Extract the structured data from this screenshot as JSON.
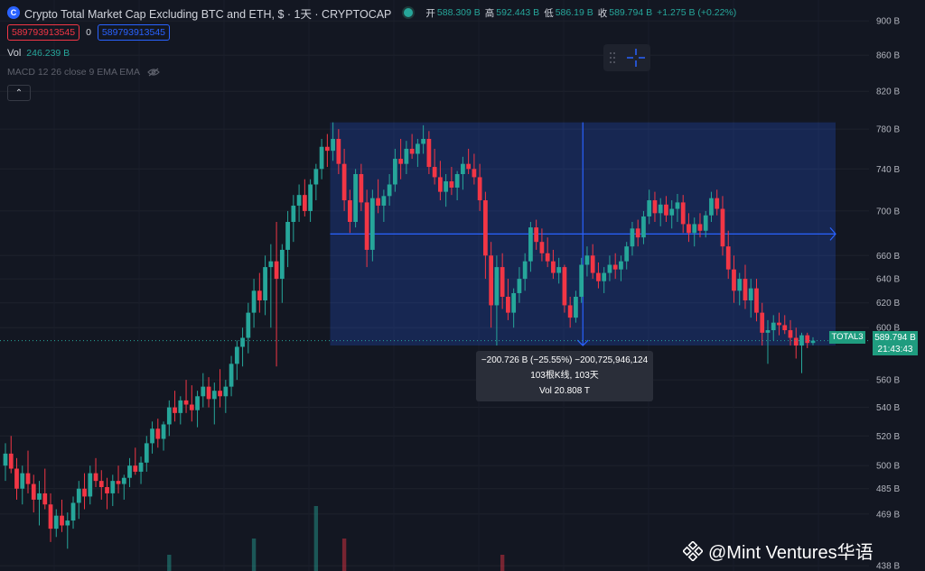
{
  "header": {
    "logo_glyph": "C",
    "title": "Crypto Total Market Cap Excluding BTC and ETH, $ · 1天 · CRYPTOCAP",
    "ohlc": [
      {
        "label": "开",
        "value": "588.309 B"
      },
      {
        "label": "高",
        "value": "592.443 B"
      },
      {
        "label": "低",
        "value": "586.19 B"
      },
      {
        "label": "收",
        "value": "589.794 B"
      },
      {
        "label": "",
        "value": "+1.275 B (+0.22%)"
      }
    ]
  },
  "order_boxes": {
    "sell": "589793913545",
    "spread": "0",
    "buy": "589793913545"
  },
  "volume_legend": {
    "label": "Vol",
    "value": "246.239 B"
  },
  "macd_legend": {
    "text": "MACD 12 26 close 9 EMA EMA"
  },
  "collapse_glyph": "⌃",
  "measure_tooltip": {
    "line1": "−200.726 B (−25.55%) −200,725,946,124",
    "line2": "103根K线, 103天",
    "line3": "Vol 20.808 T"
  },
  "last_price": {
    "symbol": "TOTAL3",
    "value": "589.794 B",
    "countdown": "21:43:43"
  },
  "watermark": "@Mint Ventures华语",
  "colors": {
    "up": "#26a69a",
    "down": "#f23645",
    "accent": "#2962ff",
    "bg": "#131722"
  },
  "chart_data": {
    "type": "candlestick",
    "y_axis_ticks": [
      "900 B",
      "860 B",
      "820 B",
      "780 B",
      "740 B",
      "700 B",
      "660 B",
      "640 B",
      "620 B",
      "600 B",
      "560 B",
      "540 B",
      "520 B",
      "500 B",
      "485 B",
      "469 B",
      "438 B"
    ],
    "y_tick_values": [
      900,
      860,
      820,
      780,
      740,
      700,
      660,
      640,
      620,
      600,
      560,
      540,
      520,
      500,
      485,
      469,
      438
    ],
    "y_log": true,
    "ylim": [
      435,
      912
    ],
    "measure": {
      "start_index": 58,
      "end_index": 161,
      "top": 787,
      "bottom": 586
    },
    "candles": [
      [
        500,
        515,
        490,
        508
      ],
      [
        508,
        520,
        495,
        498
      ],
      [
        498,
        505,
        478,
        485
      ],
      [
        485,
        500,
        475,
        495
      ],
      [
        495,
        510,
        482,
        488
      ],
      [
        488,
        494,
        470,
        478
      ],
      [
        478,
        490,
        462,
        482
      ],
      [
        482,
        498,
        472,
        475
      ],
      [
        475,
        482,
        452,
        460
      ],
      [
        460,
        472,
        455,
        468
      ],
      [
        468,
        478,
        458,
        462
      ],
      [
        462,
        470,
        448,
        465
      ],
      [
        465,
        480,
        460,
        476
      ],
      [
        476,
        490,
        466,
        485
      ],
      [
        485,
        495,
        472,
        480
      ],
      [
        480,
        500,
        475,
        495
      ],
      [
        495,
        505,
        486,
        490
      ],
      [
        490,
        497,
        478,
        486
      ],
      [
        486,
        492,
        472,
        482
      ],
      [
        482,
        494,
        474,
        490
      ],
      [
        490,
        500,
        482,
        488
      ],
      [
        488,
        494,
        478,
        492
      ],
      [
        492,
        505,
        486,
        500
      ],
      [
        500,
        512,
        494,
        496
      ],
      [
        496,
        506,
        488,
        502
      ],
      [
        502,
        520,
        496,
        515
      ],
      [
        515,
        530,
        508,
        525
      ],
      [
        525,
        532,
        512,
        518
      ],
      [
        518,
        530,
        510,
        528
      ],
      [
        528,
        545,
        520,
        540
      ],
      [
        540,
        552,
        530,
        536
      ],
      [
        536,
        548,
        528,
        545
      ],
      [
        545,
        560,
        536,
        542
      ],
      [
        542,
        556,
        530,
        538
      ],
      [
        538,
        552,
        526,
        548
      ],
      [
        548,
        565,
        540,
        555
      ],
      [
        555,
        562,
        540,
        546
      ],
      [
        546,
        558,
        528,
        552
      ],
      [
        552,
        568,
        540,
        548
      ],
      [
        548,
        560,
        536,
        555
      ],
      [
        555,
        578,
        548,
        572
      ],
      [
        572,
        590,
        560,
        585
      ],
      [
        585,
        600,
        570,
        592
      ],
      [
        592,
        620,
        580,
        612
      ],
      [
        612,
        640,
        600,
        630
      ],
      [
        630,
        645,
        612,
        622
      ],
      [
        622,
        660,
        610,
        650
      ],
      [
        650,
        670,
        600,
        655
      ],
      [
        655,
        690,
        570,
        640
      ],
      [
        640,
        670,
        620,
        665
      ],
      [
        665,
        700,
        650,
        690
      ],
      [
        690,
        715,
        672,
        705
      ],
      [
        705,
        725,
        690,
        715
      ],
      [
        715,
        730,
        695,
        700
      ],
      [
        700,
        730,
        690,
        725
      ],
      [
        725,
        745,
        710,
        740
      ],
      [
        740,
        770,
        730,
        762
      ],
      [
        762,
        775,
        742,
        758
      ],
      [
        758,
        787,
        748,
        770
      ],
      [
        770,
        780,
        735,
        745
      ],
      [
        745,
        760,
        700,
        710
      ],
      [
        710,
        720,
        680,
        690
      ],
      [
        690,
        740,
        685,
        735
      ],
      [
        735,
        745,
        700,
        708
      ],
      [
        708,
        720,
        650,
        665
      ],
      [
        665,
        720,
        655,
        712
      ],
      [
        712,
        730,
        698,
        705
      ],
      [
        705,
        720,
        690,
        714
      ],
      [
        714,
        735,
        705,
        725
      ],
      [
        725,
        760,
        718,
        750
      ],
      [
        750,
        770,
        730,
        745
      ],
      [
        745,
        768,
        735,
        760
      ],
      [
        760,
        775,
        750,
        755
      ],
      [
        755,
        770,
        742,
        765
      ],
      [
        765,
        784,
        755,
        770
      ],
      [
        770,
        778,
        735,
        742
      ],
      [
        742,
        760,
        725,
        732
      ],
      [
        732,
        748,
        710,
        718
      ],
      [
        718,
        735,
        704,
        728
      ],
      [
        728,
        742,
        715,
        722
      ],
      [
        722,
        738,
        710,
        735
      ],
      [
        735,
        752,
        720,
        745
      ],
      [
        745,
        760,
        735,
        740
      ],
      [
        740,
        755,
        725,
        732
      ],
      [
        732,
        745,
        700,
        710
      ],
      [
        710,
        718,
        640,
        660
      ],
      [
        660,
        672,
        600,
        618
      ],
      [
        618,
        660,
        586,
        650
      ],
      [
        650,
        662,
        615,
        625
      ],
      [
        625,
        640,
        606,
        612
      ],
      [
        612,
        632,
        600,
        628
      ],
      [
        628,
        650,
        620,
        640
      ],
      [
        640,
        662,
        630,
        655
      ],
      [
        655,
        690,
        646,
        685
      ],
      [
        685,
        692,
        665,
        672
      ],
      [
        672,
        684,
        655,
        662
      ],
      [
        662,
        676,
        650,
        655
      ],
      [
        655,
        665,
        640,
        645
      ],
      [
        645,
        658,
        636,
        650
      ],
      [
        650,
        652,
        612,
        618
      ],
      [
        618,
        625,
        600,
        608
      ],
      [
        608,
        630,
        604,
        625
      ],
      [
        625,
        658,
        620,
        652
      ],
      [
        652,
        668,
        642,
        660
      ],
      [
        660,
        670,
        640,
        645
      ],
      [
        645,
        654,
        632,
        638
      ],
      [
        638,
        650,
        628,
        645
      ],
      [
        645,
        660,
        638,
        652
      ],
      [
        652,
        662,
        640,
        648
      ],
      [
        648,
        660,
        638,
        655
      ],
      [
        655,
        672,
        648,
        668
      ],
      [
        668,
        690,
        660,
        684
      ],
      [
        684,
        692,
        668,
        676
      ],
      [
        676,
        700,
        670,
        695
      ],
      [
        695,
        720,
        688,
        710
      ],
      [
        710,
        718,
        690,
        698
      ],
      [
        698,
        712,
        686,
        706
      ],
      [
        706,
        714,
        690,
        696
      ],
      [
        696,
        710,
        684,
        702
      ],
      [
        702,
        716,
        690,
        708
      ],
      [
        708,
        715,
        680,
        688
      ],
      [
        688,
        698,
        672,
        680
      ],
      [
        680,
        694,
        668,
        688
      ],
      [
        688,
        698,
        676,
        682
      ],
      [
        682,
        700,
        676,
        696
      ],
      [
        696,
        718,
        690,
        712
      ],
      [
        712,
        720,
        696,
        702
      ],
      [
        702,
        714,
        660,
        668
      ],
      [
        668,
        682,
        640,
        648
      ],
      [
        648,
        660,
        620,
        630
      ],
      [
        630,
        645,
        618,
        640
      ],
      [
        640,
        652,
        615,
        622
      ],
      [
        622,
        640,
        608,
        632
      ],
      [
        632,
        640,
        605,
        612
      ],
      [
        612,
        620,
        586,
        596
      ],
      [
        596,
        606,
        572,
        598
      ],
      [
        598,
        610,
        590,
        604
      ],
      [
        604,
        612,
        594,
        602
      ],
      [
        602,
        610,
        595,
        598
      ],
      [
        598,
        606,
        586,
        592
      ],
      [
        592,
        600,
        576,
        586
      ],
      [
        586,
        596,
        565,
        594
      ],
      [
        594,
        596,
        584,
        588
      ],
      [
        588,
        592.443,
        586.19,
        589.794
      ]
    ],
    "volumes": [
      {
        "index": 55,
        "value": 8
      },
      {
        "index": 60,
        "value": 4
      },
      {
        "index": 88,
        "value": 2
      },
      {
        "index": 29,
        "value": 2
      },
      {
        "index": 44,
        "value": 4
      }
    ]
  }
}
